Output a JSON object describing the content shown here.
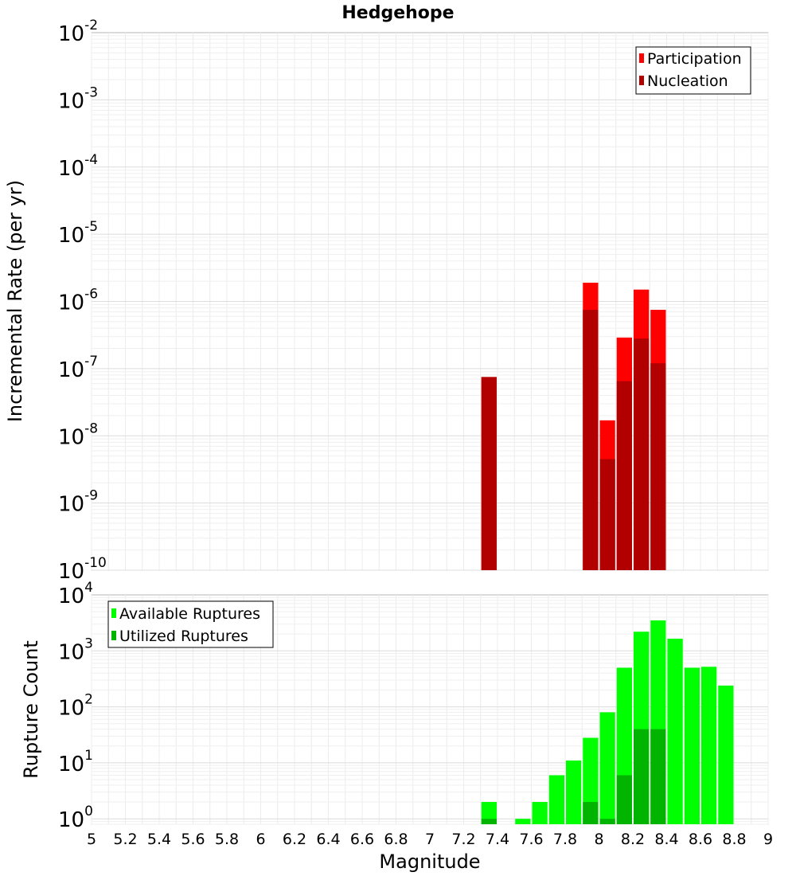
{
  "chart_data": [
    {
      "type": "bar",
      "title": "Hedgehope",
      "ylabel": "Incremental Rate (per yr)",
      "xlabel": "",
      "yscale": "log",
      "ylim": [
        1e-10,
        0.01
      ],
      "xlim": [
        5,
        9
      ],
      "bin_width": 0.1,
      "y_ticks": [
        "10^-10",
        "10^-9",
        "10^-8",
        "10^-7",
        "10^-6",
        "10^-5",
        "10^-4",
        "10^-3",
        "10^-2"
      ],
      "legend": {
        "position": "top-right",
        "entries": [
          "Participation",
          "Nucleation"
        ]
      },
      "grid": true,
      "series": [
        {
          "name": "Participation",
          "color": "#ff0000",
          "x": [
            7.35,
            7.95,
            8.05,
            8.15,
            8.25,
            8.35
          ],
          "values": [
            7.5e-08,
            1.9e-06,
            1.7e-08,
            2.9e-07,
            1.5e-06,
            7.5e-07
          ]
        },
        {
          "name": "Nucleation",
          "color": "#b20000",
          "x": [
            7.35,
            7.95,
            8.05,
            8.15,
            8.25,
            8.35
          ],
          "values": [
            7.5e-08,
            7.5e-07,
            4.5e-09,
            6.5e-08,
            2.8e-07,
            1.2e-07
          ]
        }
      ]
    },
    {
      "type": "bar",
      "title": "",
      "ylabel": "Rupture Count",
      "xlabel": "Magnitude",
      "yscale": "log",
      "ylim": [
        0.8,
        10000
      ],
      "xlim": [
        5,
        9
      ],
      "bin_width": 0.1,
      "x_ticks": [
        "5",
        "5.2",
        "5.4",
        "5.6",
        "5.8",
        "6",
        "6.2",
        "6.4",
        "6.6",
        "6.8",
        "7",
        "7.2",
        "7.4",
        "7.6",
        "7.8",
        "8",
        "8.2",
        "8.4",
        "8.6",
        "8.8",
        "9"
      ],
      "y_ticks": [
        "10^0",
        "10^1",
        "10^2",
        "10^3",
        "10^4"
      ],
      "legend": {
        "position": "top-left",
        "entries": [
          "Available Ruptures",
          "Utilized Ruptures"
        ]
      },
      "grid": true,
      "series": [
        {
          "name": "Available Ruptures",
          "color": "#00ff00",
          "x": [
            7.35,
            7.55,
            7.65,
            7.75,
            7.85,
            7.95,
            8.05,
            8.15,
            8.25,
            8.35,
            8.45,
            8.55,
            8.65,
            8.75
          ],
          "values": [
            2,
            1,
            2,
            6,
            11,
            28,
            80,
            500,
            2200,
            3500,
            1650,
            500,
            520,
            240
          ]
        },
        {
          "name": "Utilized Ruptures",
          "color": "#00b400",
          "x": [
            7.35,
            7.95,
            8.05,
            8.15,
            8.25,
            8.35
          ],
          "values": [
            1,
            2,
            1,
            6,
            40,
            40
          ]
        }
      ]
    }
  ]
}
